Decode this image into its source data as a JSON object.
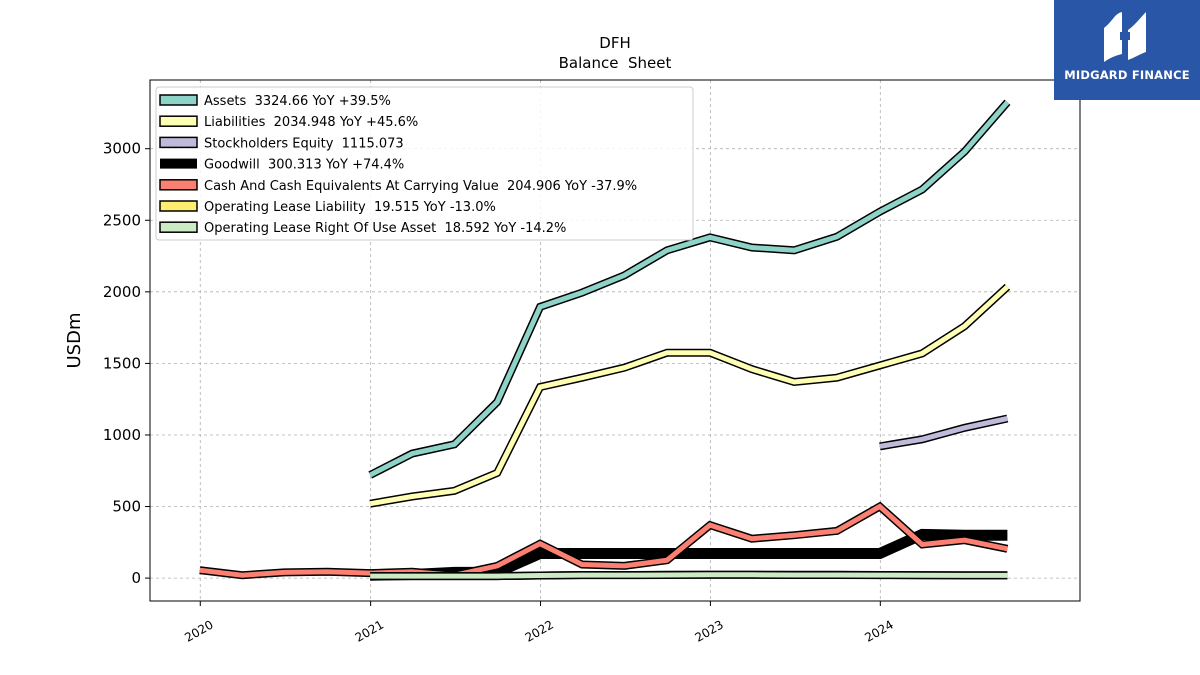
{
  "brand": {
    "name": "MIDGARD FINANCE",
    "color": "#2a56a8"
  },
  "chart_data": {
    "type": "line",
    "title": "DFH",
    "subtitle": "Balance  Sheet",
    "xlabel": "",
    "ylabel": "USDm",
    "xlim": [
      "2019-09-15",
      "2025-03-05"
    ],
    "ylim": [
      -160,
      3480
    ],
    "x_ticks": [
      "2020",
      "2021",
      "2022",
      "2023",
      "2024"
    ],
    "y_ticks": [
      0,
      500,
      1000,
      1500,
      2000,
      2500,
      3000
    ],
    "grid": true,
    "legend_position": "top-left",
    "series": [
      {
        "name": "Assets  3324.66 YoY +39.5%",
        "color": "#8dd3c7",
        "points": [
          [
            "2020-12-31",
            720
          ],
          [
            "2021-03-31",
            870
          ],
          [
            "2021-06-30",
            935
          ],
          [
            "2021-09-30",
            1230
          ],
          [
            "2021-12-31",
            1895
          ],
          [
            "2022-03-31",
            1995
          ],
          [
            "2022-06-30",
            2115
          ],
          [
            "2022-09-30",
            2290
          ],
          [
            "2022-12-31",
            2380
          ],
          [
            "2023-03-31",
            2310
          ],
          [
            "2023-06-30",
            2290
          ],
          [
            "2023-09-30",
            2385
          ],
          [
            "2023-12-31",
            2560
          ],
          [
            "2024-03-31",
            2715
          ],
          [
            "2024-06-30",
            2980
          ],
          [
            "2024-09-30",
            3325
          ]
        ]
      },
      {
        "name": "Liabilities  2034.948 YoY +45.6%",
        "color": "#ffffb3",
        "points": [
          [
            "2020-12-31",
            520
          ],
          [
            "2021-03-31",
            570
          ],
          [
            "2021-06-30",
            610
          ],
          [
            "2021-09-30",
            735
          ],
          [
            "2021-12-31",
            1335
          ],
          [
            "2022-03-31",
            1400
          ],
          [
            "2022-06-30",
            1470
          ],
          [
            "2022-09-30",
            1575
          ],
          [
            "2022-12-31",
            1575
          ],
          [
            "2023-03-31",
            1460
          ],
          [
            "2023-06-30",
            1370
          ],
          [
            "2023-09-30",
            1400
          ],
          [
            "2023-12-31",
            1485
          ],
          [
            "2024-03-31",
            1570
          ],
          [
            "2024-06-30",
            1760
          ],
          [
            "2024-09-30",
            2035
          ]
        ]
      },
      {
        "name": "Stockholders Equity  1115.073",
        "color": "#bebada",
        "points": [
          [
            "2023-12-31",
            920
          ],
          [
            "2024-03-31",
            970
          ],
          [
            "2024-06-30",
            1050
          ],
          [
            "2024-09-30",
            1115
          ]
        ]
      },
      {
        "name": "Goodwill  300.313 YoY +74.4%",
        "color": "#000000",
        "points": [
          [
            "2020-12-31",
            20
          ],
          [
            "2021-03-31",
            25
          ],
          [
            "2021-06-30",
            40
          ],
          [
            "2021-09-30",
            40
          ],
          [
            "2021-12-31",
            172
          ],
          [
            "2022-03-31",
            172
          ],
          [
            "2022-06-30",
            172
          ],
          [
            "2022-09-30",
            172
          ],
          [
            "2022-12-31",
            172
          ],
          [
            "2023-03-31",
            172
          ],
          [
            "2023-06-30",
            172
          ],
          [
            "2023-09-30",
            172
          ],
          [
            "2023-12-31",
            172
          ],
          [
            "2024-03-31",
            305
          ],
          [
            "2024-06-30",
            300
          ],
          [
            "2024-09-30",
            300
          ]
        ]
      },
      {
        "name": "Cash And Cash Equivalents At Carrying Value  204.906 YoY -37.9%",
        "color": "#fb8072",
        "points": [
          [
            "2019-12-31",
            55
          ],
          [
            "2020-03-31",
            20
          ],
          [
            "2020-06-30",
            40
          ],
          [
            "2020-09-30",
            45
          ],
          [
            "2020-12-31",
            35
          ],
          [
            "2021-03-31",
            45
          ],
          [
            "2021-06-30",
            20
          ],
          [
            "2021-09-30",
            85
          ],
          [
            "2021-12-31",
            240
          ],
          [
            "2022-03-31",
            95
          ],
          [
            "2022-06-30",
            85
          ],
          [
            "2022-09-30",
            125
          ],
          [
            "2022-12-31",
            370
          ],
          [
            "2023-03-31",
            275
          ],
          [
            "2023-06-30",
            300
          ],
          [
            "2023-09-30",
            330
          ],
          [
            "2023-12-31",
            500
          ],
          [
            "2024-03-31",
            235
          ],
          [
            "2024-06-30",
            265
          ],
          [
            "2024-09-30",
            205
          ]
        ]
      },
      {
        "name": "Operating Lease Liability  19.515 YoY -13.0%",
        "color": "#ffed6f",
        "points": [
          [
            "2020-12-31",
            14
          ],
          [
            "2021-03-31",
            14
          ],
          [
            "2021-06-30",
            14
          ],
          [
            "2021-09-30",
            14
          ],
          [
            "2021-12-31",
            18
          ],
          [
            "2022-03-31",
            22
          ],
          [
            "2022-06-30",
            22
          ],
          [
            "2022-09-30",
            23
          ],
          [
            "2022-12-31",
            24
          ],
          [
            "2023-03-31",
            24
          ],
          [
            "2023-06-30",
            23
          ],
          [
            "2023-09-30",
            23
          ],
          [
            "2023-12-31",
            22
          ],
          [
            "2024-03-31",
            21
          ],
          [
            "2024-06-30",
            20
          ],
          [
            "2024-09-30",
            19.5
          ]
        ]
      },
      {
        "name": "Operating Lease Right Of Use Asset  18.592 YoY -14.2%",
        "color": "#ccebc5",
        "points": [
          [
            "2020-12-31",
            14
          ],
          [
            "2021-03-31",
            14
          ],
          [
            "2021-06-30",
            14
          ],
          [
            "2021-09-30",
            14
          ],
          [
            "2021-12-31",
            18
          ],
          [
            "2022-03-31",
            21
          ],
          [
            "2022-06-30",
            21
          ],
          [
            "2022-09-30",
            22
          ],
          [
            "2022-12-31",
            23
          ],
          [
            "2023-03-31",
            23
          ],
          [
            "2023-06-30",
            22
          ],
          [
            "2023-09-30",
            22
          ],
          [
            "2023-12-31",
            21
          ],
          [
            "2024-03-31",
            20
          ],
          [
            "2024-06-30",
            19
          ],
          [
            "2024-09-30",
            18.6
          ]
        ]
      }
    ]
  }
}
